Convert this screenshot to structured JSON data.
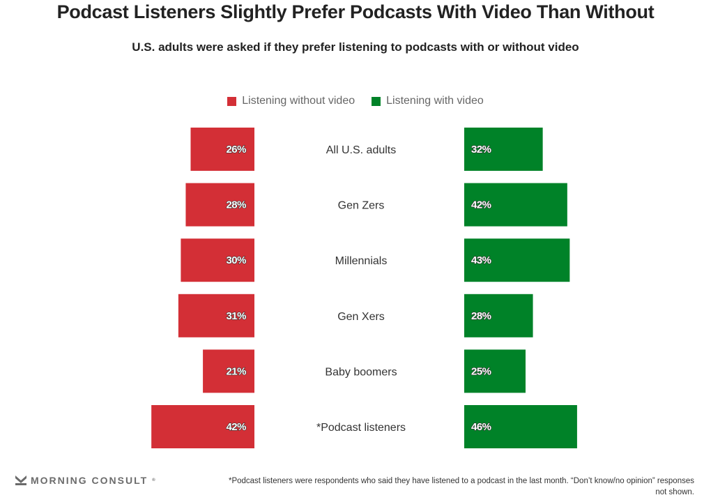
{
  "title": "Podcast Listeners Slightly Prefer Podcasts With Video Than Without",
  "subtitle": "U.S. adults were asked if they prefer listening to podcasts with or without video",
  "legend": [
    {
      "label": "Listening without video",
      "color": "#d32f36"
    },
    {
      "label": "Listening with video",
      "color": "#008228"
    }
  ],
  "chart_data": {
    "type": "bar",
    "orientation": "horizontal-butterfly",
    "title": "Podcast Listeners Slightly Prefer Podcasts With Video Than Without",
    "subtitle": "U.S. adults were asked if they prefer listening to podcasts with or without video",
    "categories": [
      "All U.S. adults",
      "Gen Zers",
      "Millennials",
      "Gen Xers",
      "Baby boomers",
      "*Podcast listeners"
    ],
    "series": [
      {
        "name": "Listening without video",
        "color": "#d32f36",
        "side": "left",
        "values": [
          26,
          28,
          30,
          31,
          21,
          42
        ]
      },
      {
        "name": "Listening with video",
        "color": "#008228",
        "side": "right",
        "values": [
          32,
          42,
          43,
          28,
          25,
          46
        ]
      }
    ],
    "value_format": "{v}%",
    "xlabel": "",
    "ylabel": "",
    "xlim": [
      0,
      50
    ],
    "grid": false,
    "legend_position": "top-center"
  },
  "footer": {
    "logo_text": "MORNING CONSULT",
    "logo_mark": "®",
    "footnote": "*Podcast listeners were respondents who said they have listened to a podcast in the last month. “Don’t know/no opinion” responses not shown."
  }
}
